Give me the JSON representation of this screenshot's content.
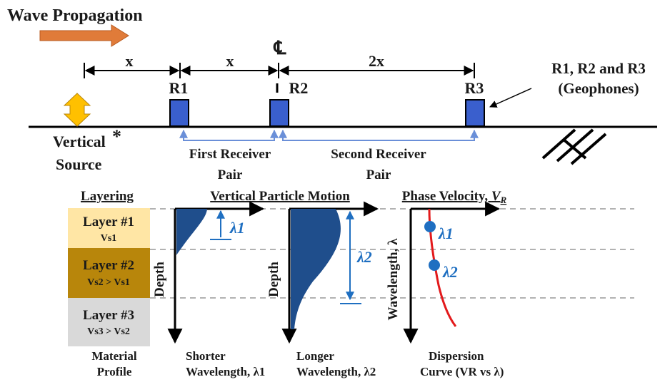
{
  "title": "Wave Propagation",
  "spacing": {
    "x1": "x",
    "x2": "x",
    "x3": "2x"
  },
  "centerline_symbol": "℄",
  "receivers": {
    "r1": "R1",
    "r2": "R2",
    "r3": "R3"
  },
  "geophones": {
    "line1": "R1, R2 and R3",
    "line2": "(Geophones)"
  },
  "source": {
    "line1": "Vertical",
    "asterisk": "*",
    "line2": "Source"
  },
  "pairs": {
    "first_line1": "First Receiver",
    "first_line2": "Pair",
    "second_line1": "Second Receiver",
    "second_line2": "Pair"
  },
  "layering": {
    "heading": "Layering",
    "layers": [
      {
        "name": "Layer #1",
        "vs": "Vs1",
        "color": "#ffe6a5"
      },
      {
        "name": "Layer #2",
        "vs": "Vs2  > Vs1",
        "color": "#b8860b"
      },
      {
        "name": "Layer #3",
        "vs": "Vs3  > Vs2",
        "color": "#d9d9d9"
      }
    ],
    "caption_line1": "Material",
    "caption_line2": "Profile"
  },
  "motion": {
    "heading": "Vertical Particle Motion",
    "depth_label": "Depth",
    "lambda1": "λ1",
    "lambda2": "λ2",
    "short_line1": "Shorter",
    "short_line2": "Wavelength, λ1",
    "long_line1": "Longer",
    "long_line2": "Wavelength, λ2"
  },
  "velocity": {
    "heading": "Phase Velocity, VR",
    "axis_label": "Wavelength, λ",
    "point1": "λ1",
    "point2": "λ2",
    "caption_line1": "Dispersion",
    "caption_line2": "Curve (VR vs λ)"
  },
  "colors": {
    "arrow_orange": "#e07b39",
    "source_yellow": "#ffc000",
    "receiver_blue": "#3a5fcd",
    "lambda_blue": "#1f6fc1",
    "shape_navy": "#1f4e8c",
    "curve_red": "#e31a1c"
  }
}
